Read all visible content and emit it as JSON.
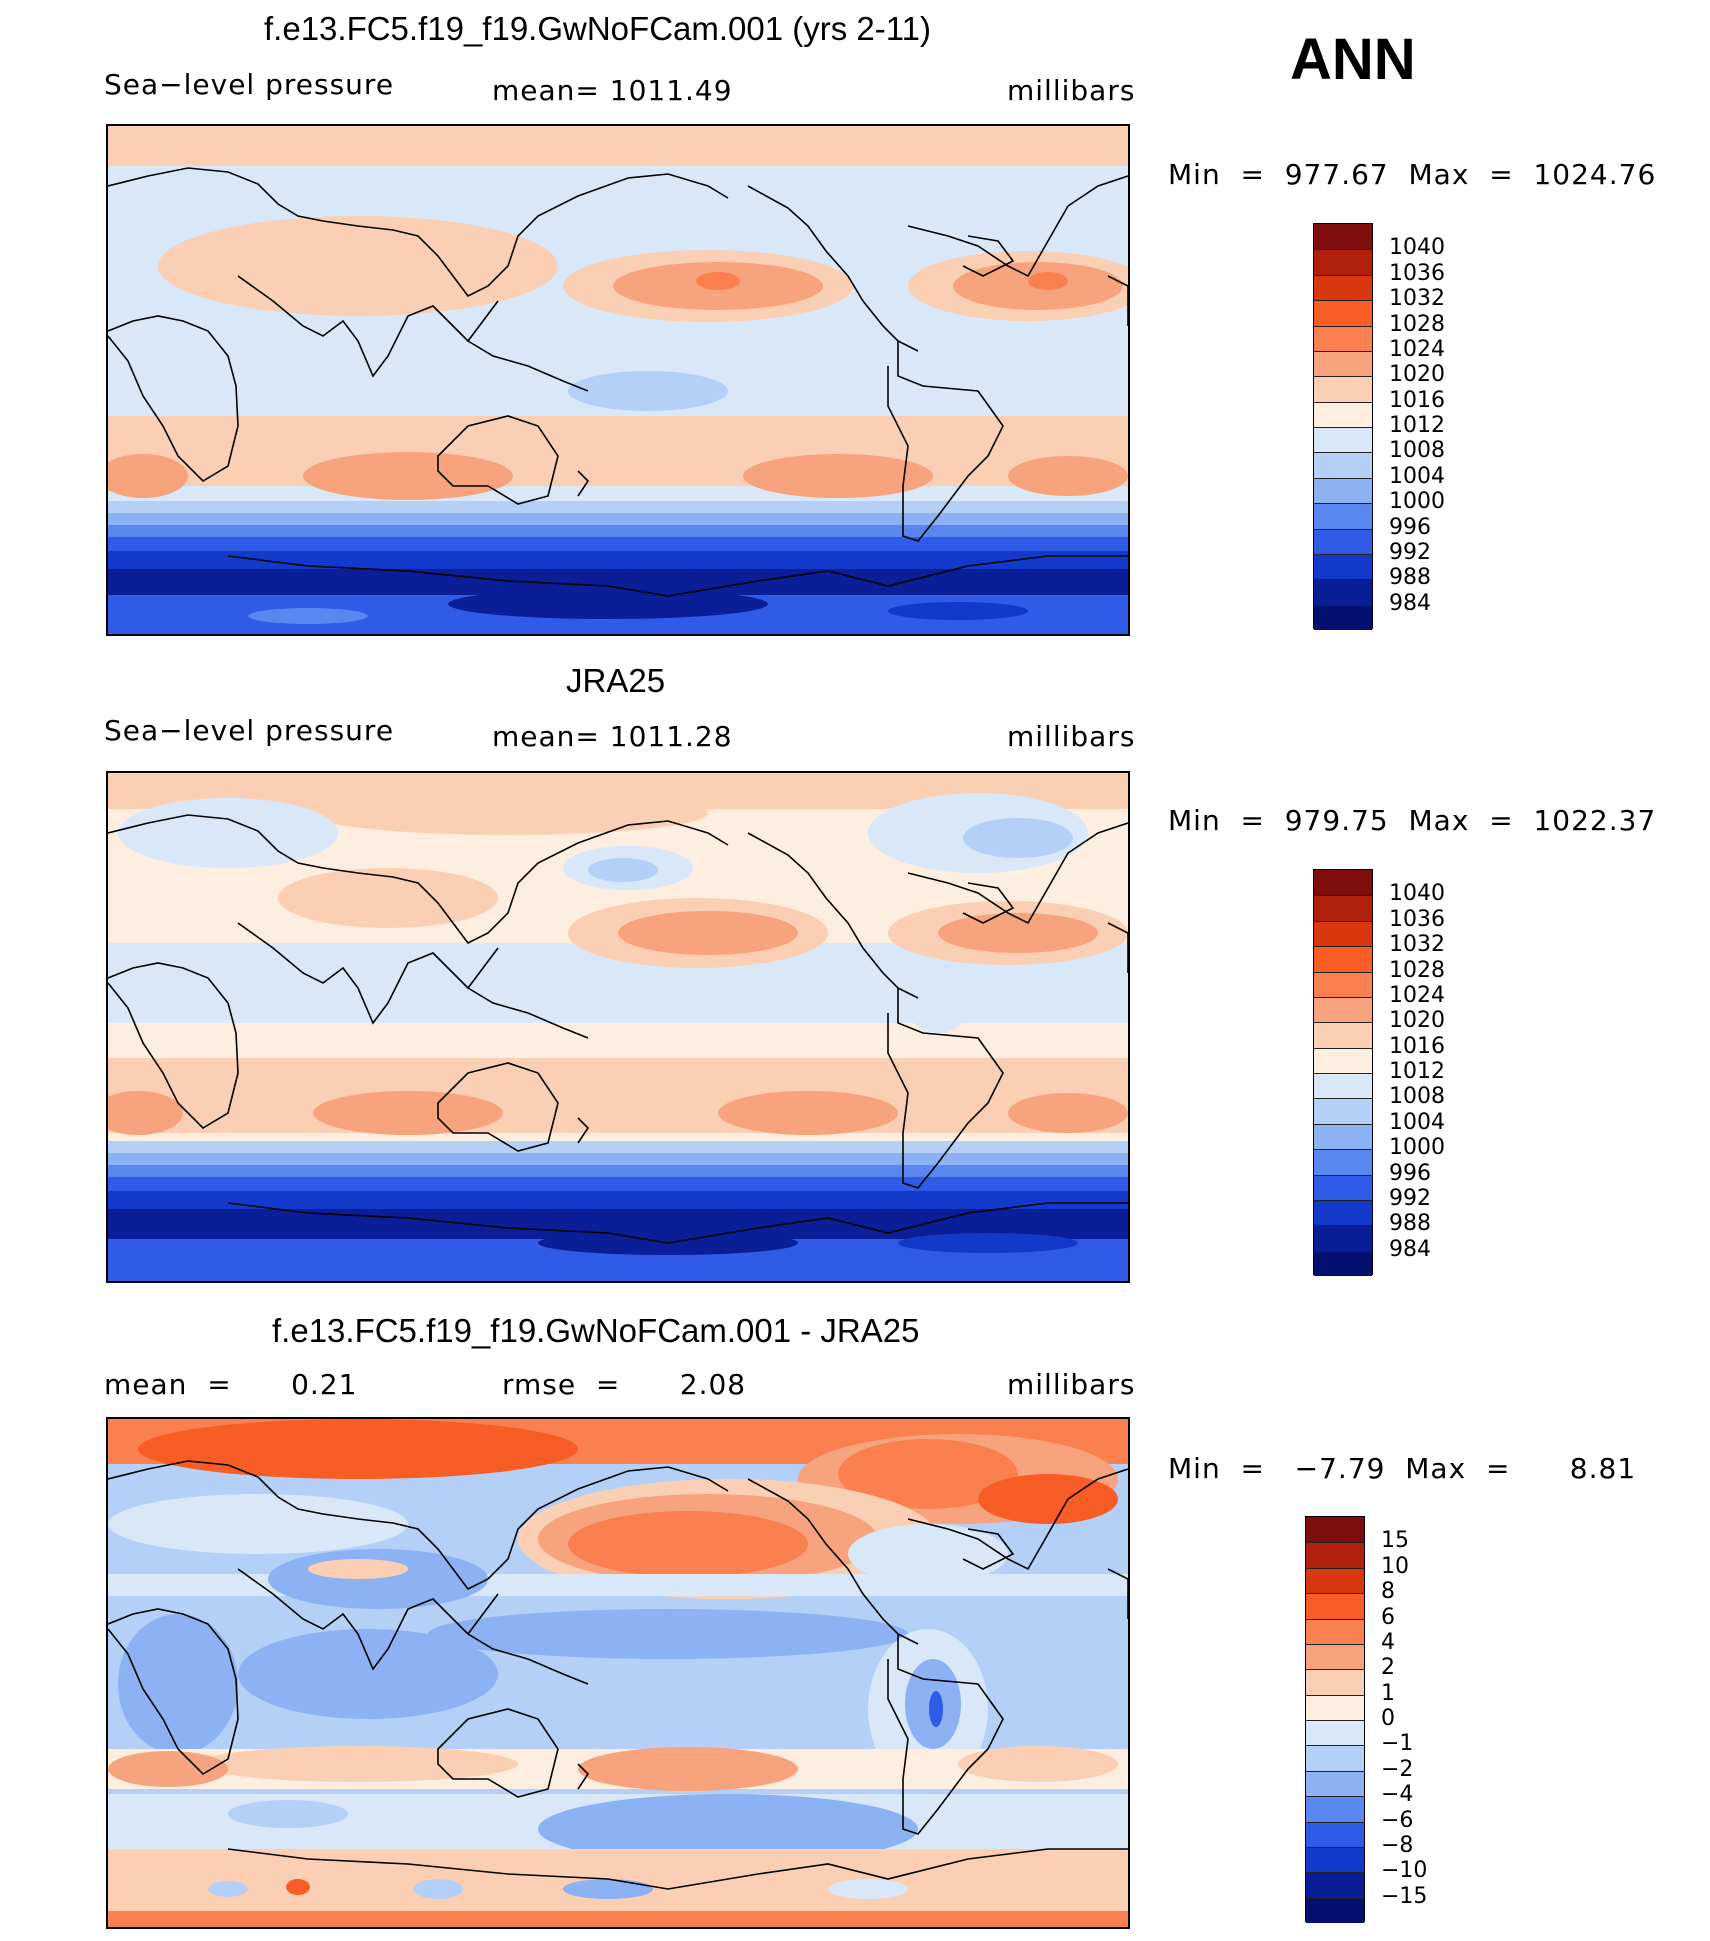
{
  "season": "ANN",
  "panels": [
    {
      "title": "f.e13.FC5.f19_f19.GwNoFCam.001 (yrs 2-11)",
      "left_label": "Sea−level pressure",
      "mid_label": "mean=  1011.49",
      "units": "millibars",
      "minmax": "Min  =  977.67  Max  =  1024.76",
      "colorbar_labels": [
        "1040",
        "1036",
        "1032",
        "1028",
        "1024",
        "1020",
        "1016",
        "1012",
        "1008",
        "1004",
        "1000",
        "996",
        "992",
        "988",
        "984"
      ]
    },
    {
      "title": "JRA25",
      "left_label": "Sea−level pressure",
      "mid_label": "mean=  1011.28",
      "units": "millibars",
      "minmax": "Min  =  979.75  Max  =  1022.37",
      "colorbar_labels": [
        "1040",
        "1036",
        "1032",
        "1028",
        "1024",
        "1020",
        "1016",
        "1012",
        "1008",
        "1004",
        "1000",
        "996",
        "992",
        "988",
        "984"
      ]
    },
    {
      "title": "f.e13.FC5.f19_f19.GwNoFCam.001 - JRA25",
      "left_label": "mean  =      0.21",
      "mid_label": "rmse  =      2.08",
      "units": "millibars",
      "minmax": "Min  =   −7.79  Max  =      8.81",
      "colorbar_labels": [
        "15",
        "10",
        "8",
        "6",
        "4",
        "2",
        "1",
        "0",
        "−1",
        "−2",
        "−4",
        "−6",
        "−8",
        "−10",
        "−15"
      ]
    }
  ],
  "colors": {
    "slp": [
      "#7f0d0d",
      "#b0200c",
      "#d9370e",
      "#f75d24",
      "#fa8050",
      "#f7a47e",
      "#fbcfb3",
      "#fdeee0",
      "#d8e8f9",
      "#b4d0f6",
      "#8cb2f3",
      "#5a87ef",
      "#2f5be7",
      "#1339cb",
      "#0a1e97",
      "#041070"
    ],
    "diff": [
      "#7f0d0d",
      "#b0200c",
      "#d9370e",
      "#f75d24",
      "#fa8050",
      "#f7a47e",
      "#fbcfb3",
      "#fdeee0",
      "#d8e8f9",
      "#b4d0f6",
      "#8cb2f3",
      "#5a87ef",
      "#2f5be7",
      "#1339cb",
      "#0a1e97",
      "#041070"
    ]
  }
}
